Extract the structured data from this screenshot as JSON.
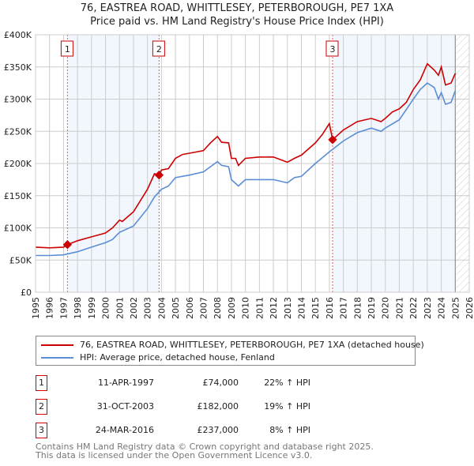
{
  "chart_data": {
    "type": "line",
    "title": "76, EASTREA ROAD, WHITTLESEY, PETERBOROUGH, PE7 1XA",
    "subtitle": "Price paid vs. HM Land Registry's House Price Index (HPI)",
    "xlim": [
      1995,
      2026
    ],
    "ylim": [
      0,
      400000
    ],
    "x_ticks": [
      "1995",
      "1996",
      "1997",
      "1998",
      "1999",
      "2000",
      "2001",
      "2002",
      "2003",
      "2004",
      "2005",
      "2006",
      "2007",
      "2008",
      "2009",
      "2010",
      "2011",
      "2012",
      "2013",
      "2014",
      "2015",
      "2016",
      "2017",
      "2018",
      "2019",
      "2020",
      "2021",
      "2022",
      "2023",
      "2024",
      "2025",
      "2026"
    ],
    "y_ticks": [
      {
        "v": 0,
        "label": "£0"
      },
      {
        "v": 50000,
        "label": "£50K"
      },
      {
        "v": 100000,
        "label": "£100K"
      },
      {
        "v": 150000,
        "label": "£150K"
      },
      {
        "v": 200000,
        "label": "£200K"
      },
      {
        "v": 250000,
        "label": "£250K"
      },
      {
        "v": 300000,
        "label": "£300K"
      },
      {
        "v": 350000,
        "label": "£350K"
      },
      {
        "v": 400000,
        "label": "£400K"
      }
    ],
    "grid": true,
    "shaded_ranges": [
      [
        1997.28,
        2003.83
      ],
      [
        2016.23,
        2025.0
      ]
    ],
    "forecast_hatch_from": 2025.0,
    "series": [
      {
        "name": "76, EASTREA ROAD, WHITTLESEY, PETERBOROUGH, PE7 1XA (detached house)",
        "color": "#cc0000",
        "x": [
          1995,
          1996,
          1997,
          1997.28,
          1998,
          1999,
          2000,
          2000.5,
          2001,
          2001.2,
          2002,
          2003,
          2003.5,
          2003.83,
          2004,
          2004.5,
          2005,
          2005.5,
          2006,
          2007,
          2007.5,
          2008,
          2008.3,
          2008.8,
          2009,
          2009.3,
          2009.5,
          2010,
          2011,
          2012,
          2013,
          2013.5,
          2014,
          2015,
          2015.5,
          2016,
          2016.23,
          2017,
          2018,
          2019,
          2019.7,
          2020,
          2020.5,
          2021,
          2021.5,
          2022,
          2022.5,
          2023,
          2023.5,
          2023.8,
          2024,
          2024.3,
          2024.7,
          2025
        ],
        "y": [
          70000,
          69000,
          70000,
          74000,
          80000,
          86000,
          92000,
          100000,
          112000,
          110000,
          125000,
          160000,
          184000,
          182000,
          190000,
          192000,
          208000,
          214000,
          216000,
          220000,
          232000,
          242000,
          233000,
          232000,
          208000,
          208000,
          197000,
          208000,
          210000,
          210000,
          202000,
          208000,
          213000,
          232000,
          245000,
          262000,
          237000,
          252000,
          265000,
          270000,
          265000,
          270000,
          280000,
          285000,
          295000,
          315000,
          330000,
          355000,
          345000,
          337000,
          350000,
          322000,
          325000,
          340000
        ]
      },
      {
        "name": "HPI: Average price, detached house, Fenland",
        "color": "#5b8ed6",
        "x": [
          1995,
          1996,
          1997,
          1998,
          1999,
          2000,
          2000.5,
          2001,
          2002,
          2003,
          2003.5,
          2004,
          2004.5,
          2005,
          2006,
          2007,
          2008,
          2008.3,
          2008.8,
          2009,
          2009.5,
          2010,
          2011,
          2012,
          2013,
          2013.5,
          2014,
          2015,
          2016,
          2016.23,
          2017,
          2018,
          2019,
          2019.7,
          2020,
          2021,
          2022,
          2022.5,
          2023,
          2023.5,
          2023.8,
          2024,
          2024.3,
          2024.7,
          2025
        ],
        "y": [
          57000,
          57000,
          58000,
          63000,
          70000,
          77000,
          82000,
          93000,
          103000,
          130000,
          148000,
          160000,
          165000,
          178000,
          182000,
          187000,
          203000,
          197000,
          195000,
          175000,
          165000,
          175000,
          175000,
          175000,
          170000,
          178000,
          180000,
          200000,
          218000,
          222000,
          235000,
          248000,
          255000,
          250000,
          255000,
          268000,
          300000,
          315000,
          325000,
          318000,
          300000,
          310000,
          292000,
          295000,
          313000
        ]
      }
    ],
    "sales": [
      {
        "n": "1",
        "x": 1997.28,
        "y": 74000,
        "date": "11-APR-1997",
        "price": "£74,000",
        "hpi": "22% ↑ HPI"
      },
      {
        "n": "2",
        "x": 2003.83,
        "y": 182000,
        "date": "31-OCT-2003",
        "price": "£182,000",
        "hpi": "19% ↑ HPI"
      },
      {
        "n": "3",
        "x": 2016.23,
        "y": 237000,
        "date": "24-MAR-2016",
        "price": "£237,000",
        "hpi": "8% ↑ HPI"
      }
    ]
  },
  "footer": {
    "line1": "Contains HM Land Registry data © Crown copyright and database right 2025.",
    "line2": "This data is licensed under the Open Government Licence v3.0."
  }
}
